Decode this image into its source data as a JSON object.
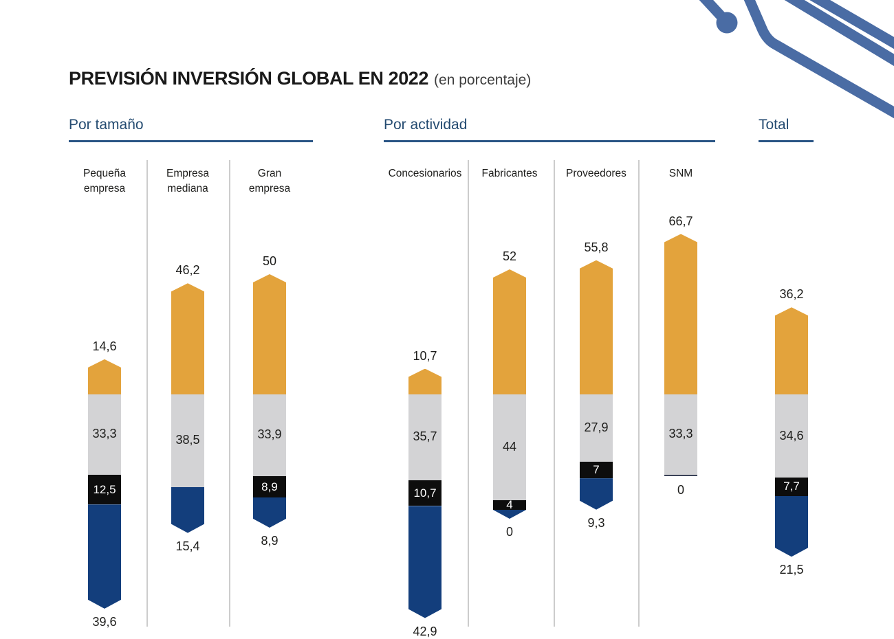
{
  "title": "PREVISIÓN INVERSIÓN GLOBAL EN 2022",
  "subtitle": "(en porcentaje)",
  "colors": {
    "increase_orange": "#E3A33C",
    "equal_gray": "#D3D3D5",
    "slight_black": "#0D0D0D",
    "decrease_navy": "#133E7C",
    "zero_line": "#3A4257",
    "header_blue": "#234A70",
    "decoration": "#4A6CA4",
    "divider_gray": "#CCCCCC",
    "label_text": "#1D1D1B"
  },
  "chart_data": {
    "type": "bar",
    "variant": "stacked-pictorial-arrows",
    "title": "PREVISIÓN INVERSIÓN GLOBAL EN 2022",
    "subtitle": "(en porcentaje)",
    "unit": "percent",
    "stack_order": [
      "up",
      "neutral",
      "down_slight",
      "down"
    ],
    "segment_colors": {
      "up": "#E3A33C",
      "neutral": "#D3D3D5",
      "down_slight": "#0D0D0D",
      "down": "#133E7C",
      "zero_line": "#3A4257"
    },
    "groups": [
      {
        "label": "Por tamaño",
        "bars": [
          {
            "category": "Pequeña\nempresa",
            "up": 14.6,
            "up_label": "14,6",
            "neutral": 33.3,
            "neutral_label": "33,3",
            "down_slight": 12.5,
            "down_slight_label": "12,5",
            "down": 39.6,
            "down_label": "39,6",
            "down_style": "arrow"
          },
          {
            "category": "Empresa\nmediana",
            "up": 46.2,
            "up_label": "46,2",
            "neutral": 38.5,
            "neutral_label": "38,5",
            "down_slight": null,
            "down_slight_label": null,
            "down": 15.4,
            "down_label": "15,4",
            "down_style": "arrow"
          },
          {
            "category": "Gran\nempresa",
            "up": 50,
            "up_label": "50",
            "neutral": 33.9,
            "neutral_label": "33,9",
            "down_slight": 8.9,
            "down_slight_label": "8,9",
            "down": 8.9,
            "down_label": "8,9",
            "down_style": "arrow"
          }
        ]
      },
      {
        "label": "Por actividad",
        "bars": [
          {
            "category": "Concesionarios",
            "up": 10.7,
            "up_label": "10,7",
            "neutral": 35.7,
            "neutral_label": "35,7",
            "down_slight": 10.7,
            "down_slight_label": "10,7",
            "down": 42.9,
            "down_label": "42,9",
            "down_style": "arrow"
          },
          {
            "category": "Fabricantes",
            "up": 52,
            "up_label": "52",
            "neutral": 44,
            "neutral_label": "44",
            "down_slight": 4,
            "down_slight_label": "4",
            "down": 0,
            "down_label": "0",
            "down_style": "arrow"
          },
          {
            "category": "Proveedores",
            "up": 55.8,
            "up_label": "55,8",
            "neutral": 27.9,
            "neutral_label": "27,9",
            "down_slight": 7,
            "down_slight_label": "7",
            "down": 9.3,
            "down_label": "9,3",
            "down_style": "arrow"
          },
          {
            "category": "SNM",
            "up": 66.7,
            "up_label": "66,7",
            "neutral": 33.3,
            "neutral_label": "33,3",
            "down_slight": null,
            "down_slight_label": null,
            "down": 0,
            "down_label": "0",
            "down_style": "line"
          }
        ]
      },
      {
        "label": "Total",
        "bars": [
          {
            "category": null,
            "up": 36.2,
            "up_label": "36,2",
            "neutral": 34.6,
            "neutral_label": "34,6",
            "down_slight": 7.7,
            "down_slight_label": "7,7",
            "down": 21.5,
            "down_label": "21,5",
            "down_style": "arrow"
          }
        ]
      }
    ]
  }
}
